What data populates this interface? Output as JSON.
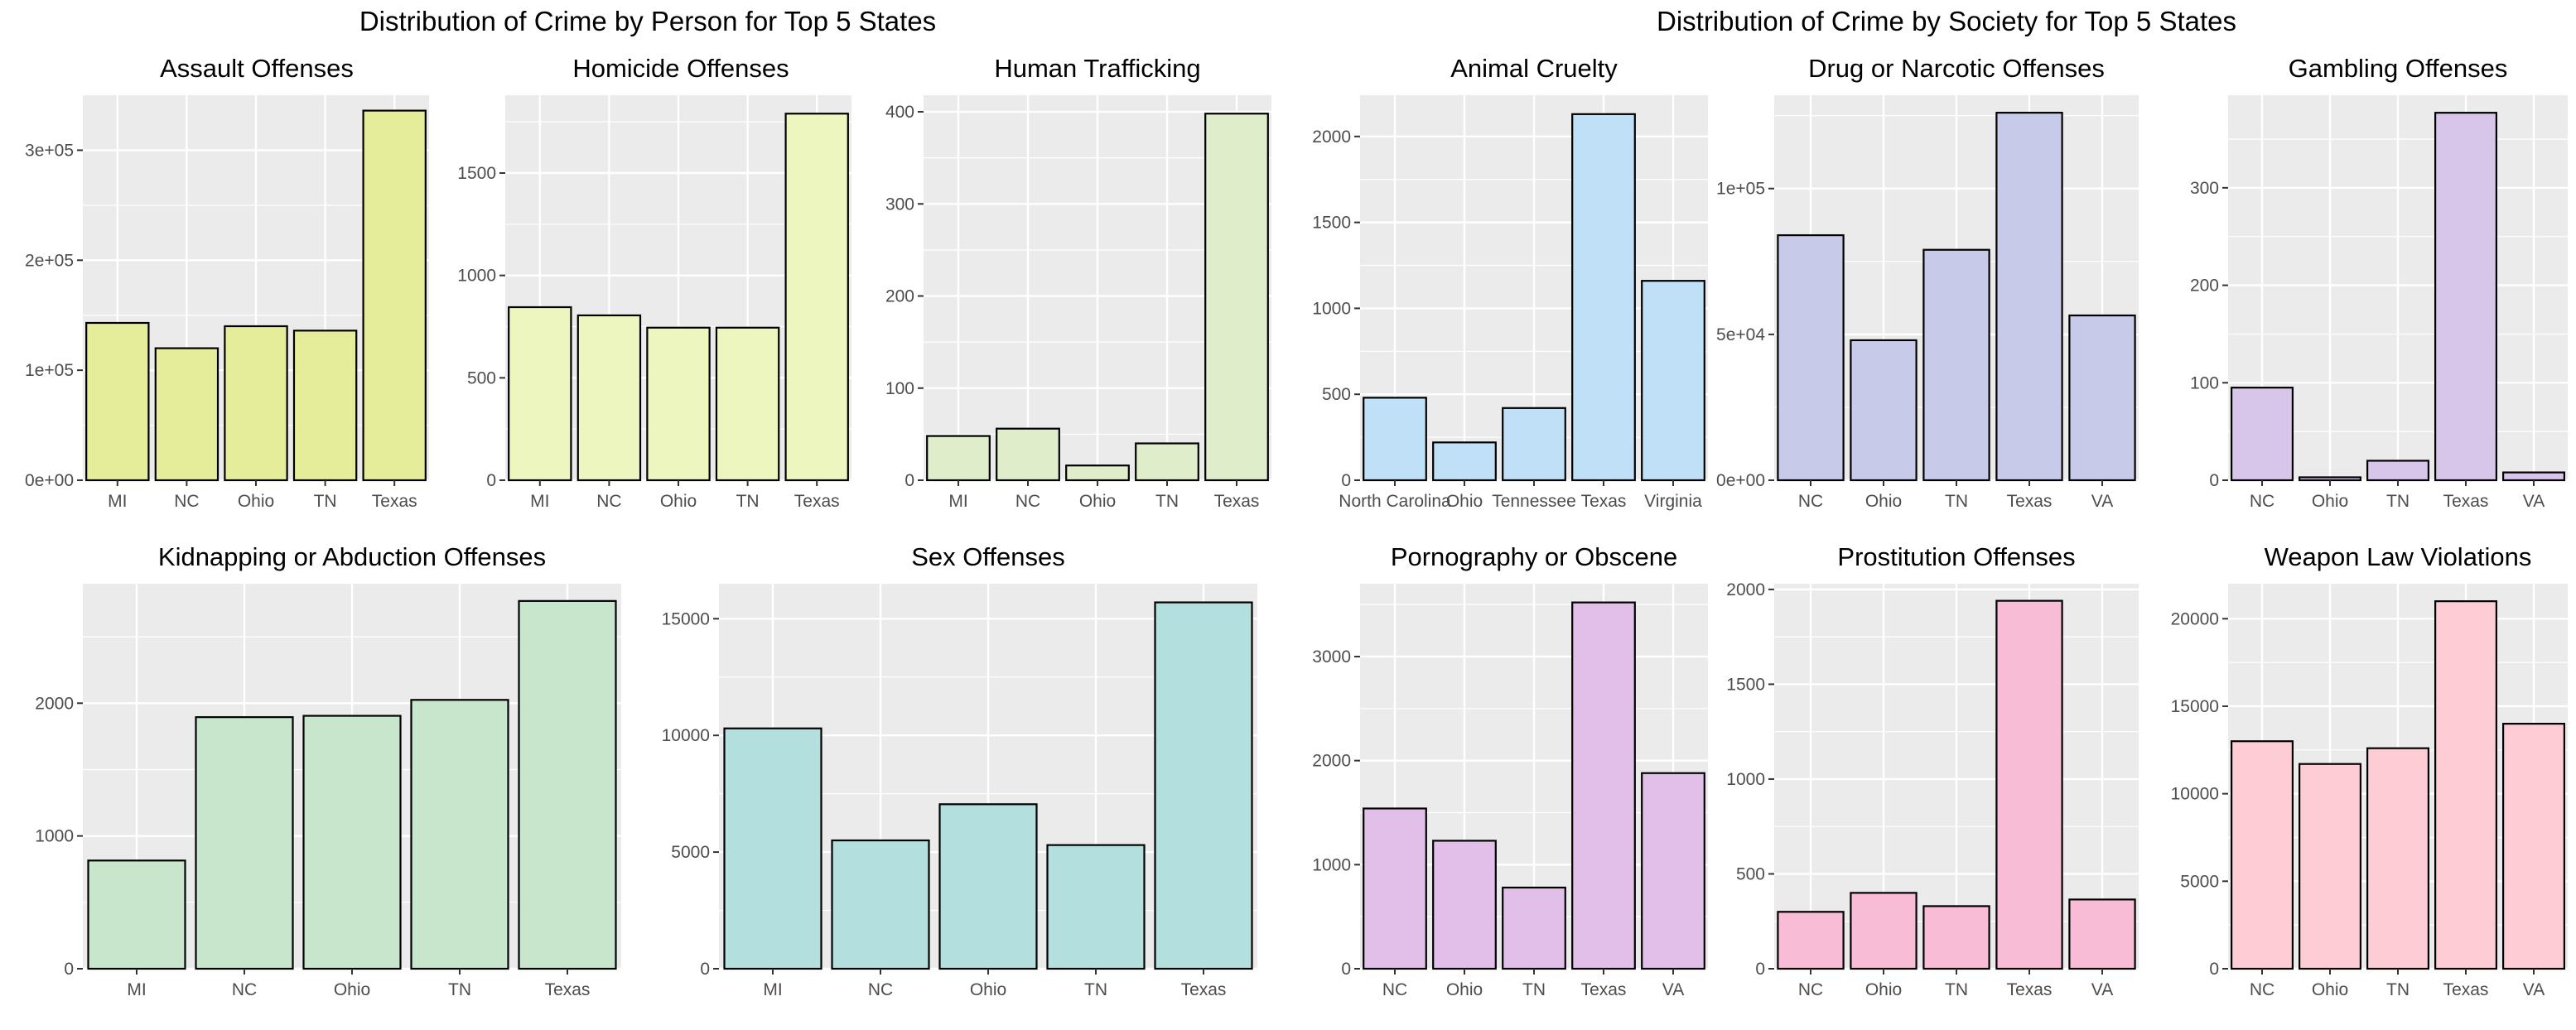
{
  "titles": {
    "left": "Distribution of Crime by Person for Top 5 States",
    "right": "Distribution of Crime by Society for Top 5 States"
  },
  "colors": {
    "panel_bg": "#ebebeb",
    "grid": "#ffffff",
    "bar_stroke": "#000000"
  },
  "chart_data": [
    {
      "type": "bar",
      "title": "Assault Offenses",
      "categories": [
        "MI",
        "NC",
        "Ohio",
        "TN",
        "Texas"
      ],
      "values": [
        143000,
        120000,
        140000,
        136000,
        336000
      ],
      "ylim": [
        0,
        350000
      ],
      "yticks": [
        0,
        100000,
        200000,
        300000
      ],
      "yticklabels": [
        "0e+00",
        "1e+05",
        "2e+05",
        "3e+05"
      ],
      "fill": "#e6ed9a"
    },
    {
      "type": "bar",
      "title": "Homicide Offenses",
      "categories": [
        "MI",
        "NC",
        "Ohio",
        "TN",
        "Texas"
      ],
      "values": [
        845,
        805,
        745,
        745,
        1790
      ],
      "ylim": [
        0,
        1880
      ],
      "yticks": [
        0,
        500,
        1000,
        1500
      ],
      "yticklabels": [
        "0",
        "500",
        "1000",
        "1500"
      ],
      "fill": "#eef6c0"
    },
    {
      "type": "bar",
      "title": "Human Trafficking",
      "categories": [
        "MI",
        "NC",
        "Ohio",
        "TN",
        "Texas"
      ],
      "values": [
        48,
        56,
        16,
        40,
        398
      ],
      "ylim": [
        0,
        418
      ],
      "yticks": [
        0,
        100,
        200,
        300,
        400
      ],
      "yticklabels": [
        "0",
        "100",
        "200",
        "300",
        "400"
      ],
      "fill": "#dfedcb"
    },
    {
      "type": "bar",
      "title": "Animal Cruelty",
      "categories": [
        "North Carolina",
        "Ohio",
        "Tennessee",
        "Texas",
        "Virginia"
      ],
      "values": [
        480,
        220,
        420,
        2130,
        1160
      ],
      "ylim": [
        0,
        2240
      ],
      "yticks": [
        0,
        500,
        1000,
        1500,
        2000
      ],
      "yticklabels": [
        "0",
        "500",
        "1000",
        "1500",
        "2000"
      ],
      "fill": "#bfe0f7"
    },
    {
      "type": "bar",
      "title": "Drug or Narcotic Offenses",
      "categories": [
        "NC",
        "Ohio",
        "TN",
        "Texas",
        "VA"
      ],
      "values": [
        84000,
        48000,
        79000,
        126000,
        56500
      ],
      "ylim": [
        0,
        132000
      ],
      "yticks": [
        0,
        50000,
        100000
      ],
      "yticklabels": [
        "0e+00",
        "5e+04",
        "1e+05"
      ],
      "fill": "#c7cae8"
    },
    {
      "type": "bar",
      "title": "Gambling Offenses",
      "categories": [
        "NC",
        "Ohio",
        "TN",
        "Texas",
        "VA"
      ],
      "values": [
        95,
        3,
        20,
        377,
        8
      ],
      "ylim": [
        0,
        395
      ],
      "yticks": [
        0,
        100,
        200,
        300
      ],
      "yticklabels": [
        "0",
        "100",
        "200",
        "300"
      ],
      "fill": "#d7c6ea"
    },
    {
      "type": "bar",
      "title": "Kidnapping or Abduction Offenses",
      "categories": [
        "MI",
        "NC",
        "Ohio",
        "TN",
        "Texas"
      ],
      "values": [
        815,
        1895,
        1905,
        2025,
        2770
      ],
      "ylim": [
        0,
        2900
      ],
      "yticks": [
        0,
        1000,
        2000
      ],
      "yticklabels": [
        "0",
        "1000",
        "2000"
      ],
      "fill": "#c8e6cb"
    },
    {
      "type": "bar",
      "title": "Sex Offenses",
      "categories": [
        "MI",
        "NC",
        "Ohio",
        "TN",
        "Texas"
      ],
      "values": [
        10300,
        5500,
        7050,
        5300,
        15700
      ],
      "ylim": [
        0,
        16500
      ],
      "yticks": [
        0,
        5000,
        10000,
        15000
      ],
      "yticklabels": [
        "0",
        "5000",
        "10000",
        "15000"
      ],
      "fill": "#b3e0de"
    },
    {
      "type": "bar",
      "title": "Pornography or Obscene",
      "categories": [
        "NC",
        "Ohio",
        "TN",
        "Texas",
        "VA"
      ],
      "values": [
        1540,
        1230,
        780,
        3520,
        1880
      ],
      "ylim": [
        0,
        3700
      ],
      "yticks": [
        0,
        1000,
        2000,
        3000
      ],
      "yticklabels": [
        "0",
        "1000",
        "2000",
        "3000"
      ],
      "fill": "#e2bfe9"
    },
    {
      "type": "bar",
      "title": "Prostitution Offenses",
      "categories": [
        "NC",
        "Ohio",
        "TN",
        "Texas",
        "VA"
      ],
      "values": [
        300,
        400,
        330,
        1940,
        365
      ],
      "ylim": [
        0,
        2030
      ],
      "yticks": [
        0,
        500,
        1000,
        1500,
        2000
      ],
      "yticklabels": [
        "0",
        "500",
        "1000",
        "1500",
        "2000"
      ],
      "fill": "#f8bcd6"
    },
    {
      "type": "bar",
      "title": "Weapon Law Violations",
      "categories": [
        "NC",
        "Ohio",
        "TN",
        "Texas",
        "VA"
      ],
      "values": [
        13000,
        11700,
        12600,
        21000,
        14000
      ],
      "ylim": [
        0,
        22000
      ],
      "yticks": [
        0,
        5000,
        10000,
        15000,
        20000
      ],
      "yticklabels": [
        "0",
        "5000",
        "10000",
        "15000",
        "20000"
      ],
      "fill": "#fdccd4"
    }
  ]
}
